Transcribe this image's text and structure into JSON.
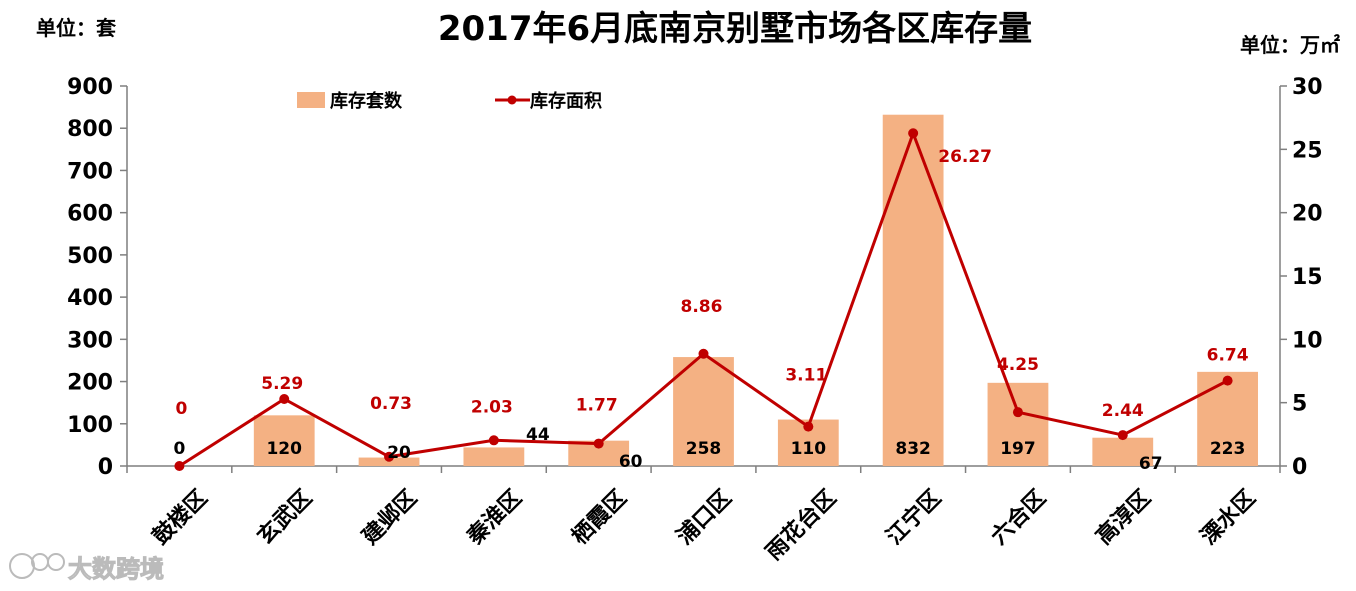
{
  "chart_data": {
    "type": "bar",
    "title": "2017年6月底南京别墅市场各区库存量",
    "left_unit": "单位：套",
    "right_unit": "单位：万㎡",
    "categories": [
      "鼓楼区",
      "玄武区",
      "建邺区",
      "秦淮区",
      "栖霞区",
      "浦口区",
      "雨花台区",
      "江宁区",
      "六合区",
      "高淳区",
      "溧水区"
    ],
    "series": [
      {
        "name": "库存套数",
        "type": "bar",
        "axis": "left",
        "color": "#F4B183",
        "values": [
          0,
          120,
          20,
          44,
          60,
          258,
          110,
          832,
          197,
          67,
          223
        ],
        "labels": [
          "0",
          "120",
          "20",
          "44",
          "60",
          "258",
          "110",
          "832",
          "197",
          "67",
          "223"
        ]
      },
      {
        "name": "库存面积",
        "type": "line",
        "axis": "right",
        "color": "#C00000",
        "values": [
          0,
          5.29,
          0.73,
          2.03,
          1.77,
          8.86,
          3.11,
          26.27,
          4.25,
          2.44,
          6.74
        ],
        "labels": [
          "0",
          "5.29",
          "0.73",
          "2.03",
          "1.77",
          "8.86",
          "3.11",
          "26.27",
          "4.25",
          "2.44",
          "6.74"
        ]
      }
    ],
    "ylim_left": [
      0,
      900
    ],
    "yticks_left": [
      "0",
      "100",
      "200",
      "300",
      "400",
      "500",
      "600",
      "700",
      "800",
      "900"
    ],
    "ylim_right": [
      0,
      30
    ],
    "yticks_right": [
      "0",
      "5",
      "10",
      "15",
      "20",
      "25",
      "30"
    ],
    "legend_position": "top-left"
  },
  "watermark": {
    "text": "大数跨境",
    "icon": "logo-icon"
  }
}
